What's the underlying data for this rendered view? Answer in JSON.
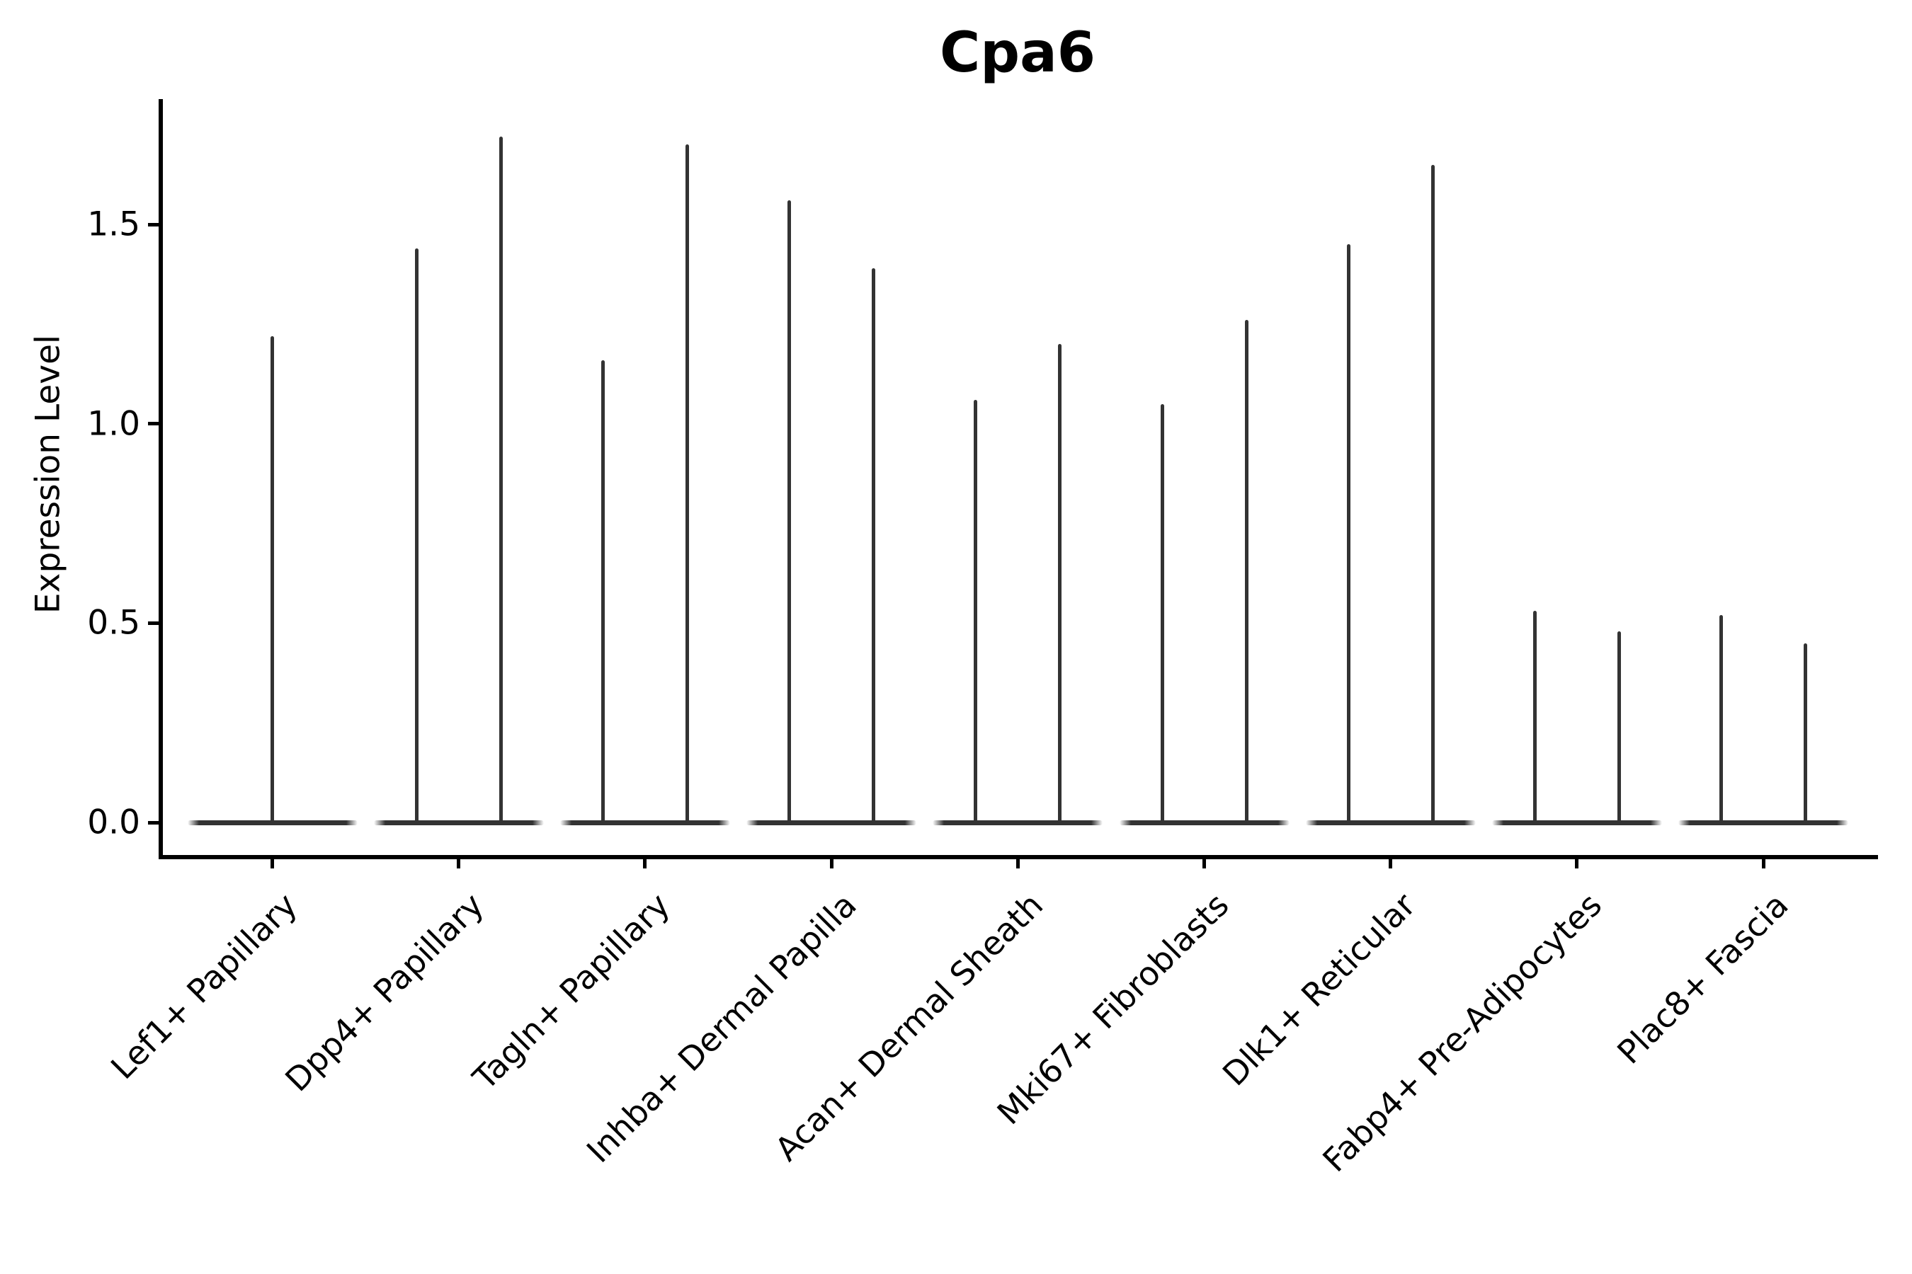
{
  "chart": {
    "title": "Cpa6",
    "ylabel": "Expression Level"
  },
  "chart_data": {
    "type": "violin",
    "title": "Cpa6",
    "xlabel": "",
    "ylabel": "Expression Level",
    "ylim": [
      -0.09,
      1.81
    ],
    "yticks": [
      {
        "value": 0.0,
        "label": "0.0"
      },
      {
        "value": 0.5,
        "label": "0.5"
      },
      {
        "value": 1.0,
        "label": "1.0"
      },
      {
        "value": 1.5,
        "label": "1.5"
      }
    ],
    "grid": false,
    "legend": false,
    "categories": [
      "Lef1+ Papillary",
      "Dpp4+ Papillary",
      "Tagln+ Papillary",
      "Inhba+ Dermal Papilla",
      "Acan+ Dermal Sheath",
      "Mki67+ Fibroblasts",
      "Dlk1+ Reticular",
      "Fabp4+ Pre-Adipocytes",
      "Plac8+ Fascia"
    ],
    "violins": [
      {
        "category": "Lef1+ Papillary",
        "spike_maxima": [
          1.22
        ]
      },
      {
        "category": "Dpp4+ Papillary",
        "spike_maxima": [
          1.44,
          1.72
        ]
      },
      {
        "category": "Tagln+ Papillary",
        "spike_maxima": [
          1.16,
          1.7
        ]
      },
      {
        "category": "Inhba+ Dermal Papilla",
        "spike_maxima": [
          1.56,
          1.39
        ]
      },
      {
        "category": "Acan+ Dermal Sheath",
        "spike_maxima": [
          1.06,
          1.2
        ]
      },
      {
        "category": "Mki67+ Fibroblasts",
        "spike_maxima": [
          1.05,
          1.26
        ]
      },
      {
        "category": "Dlk1+ Reticular",
        "spike_maxima": [
          1.45,
          1.65
        ]
      },
      {
        "category": "Fabp4+ Pre-Adipocytes",
        "spike_maxima": [
          0.53,
          0.48
        ]
      },
      {
        "category": "Plac8+ Fascia",
        "spike_maxima": [
          0.52,
          0.45
        ]
      }
    ],
    "description": "Each violin is flat at expression 0 with a needle-thin spike rising to its maximum expression value",
    "colors": {
      "violin": "#333333",
      "axis": "#000000",
      "text": "#000000",
      "background": "#ffffff"
    }
  }
}
